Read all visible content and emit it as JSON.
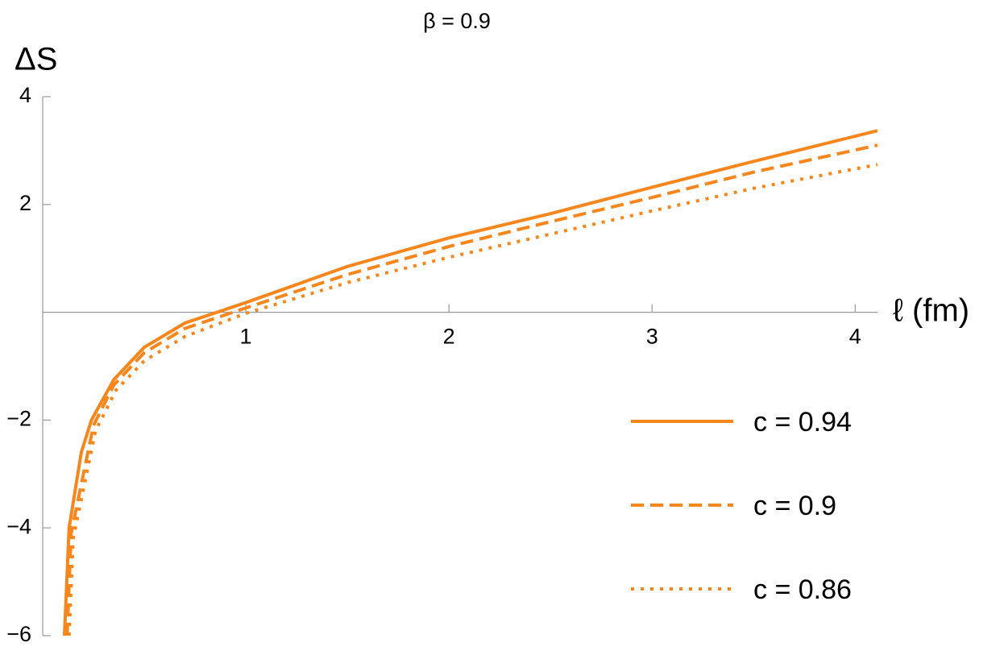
{
  "chart_data": {
    "type": "line",
    "title": "β = 0.9",
    "y_label": "ΔS",
    "x_label": "ℓ (fm)",
    "xlim": [
      0,
      4.11
    ],
    "ylim": [
      -6,
      4
    ],
    "xticks": [
      1,
      2,
      3,
      4
    ],
    "yticks": [
      {
        "value": -6,
        "label": "−6"
      },
      {
        "value": -4,
        "label": "−4"
      },
      {
        "value": -2,
        "label": "−2"
      },
      2,
      4
    ],
    "series": [
      {
        "name": "c = 0.94",
        "color": "#f7861c",
        "dash": "solid",
        "x": [
          0.107,
          0.13,
          0.19,
          0.24,
          0.35,
          0.5,
          0.7,
          1.0,
          1.5,
          2.0,
          2.5,
          3.0,
          3.5,
          4.11
        ],
        "values": [
          -6,
          -4,
          -2.6,
          -2.0,
          -1.25,
          -0.65,
          -0.2,
          0.18,
          0.85,
          1.38,
          1.83,
          2.32,
          2.8,
          3.37
        ]
      },
      {
        "name": "c = 0.9",
        "color": "#f7861c",
        "dash": "dashed",
        "x": [
          0.12,
          0.14,
          0.25,
          0.35,
          0.5,
          0.7,
          1.0,
          1.5,
          2.0,
          2.5,
          3.0,
          3.5,
          4.11
        ],
        "values": [
          -6,
          -4.1,
          -2.1,
          -1.35,
          -0.75,
          -0.3,
          0.08,
          0.7,
          1.22,
          1.68,
          2.13,
          2.6,
          3.1
        ]
      },
      {
        "name": "c = 0.86",
        "color": "#f7861c",
        "dash": "dotted",
        "x": [
          0.13,
          0.15,
          0.26,
          0.36,
          0.5,
          0.7,
          1.0,
          1.5,
          2.0,
          2.5,
          3.0,
          3.5,
          4.11
        ],
        "values": [
          -6,
          -4.2,
          -2.2,
          -1.45,
          -0.9,
          -0.45,
          -0.02,
          0.55,
          1.02,
          1.45,
          1.88,
          2.3,
          2.74
        ]
      }
    ]
  }
}
